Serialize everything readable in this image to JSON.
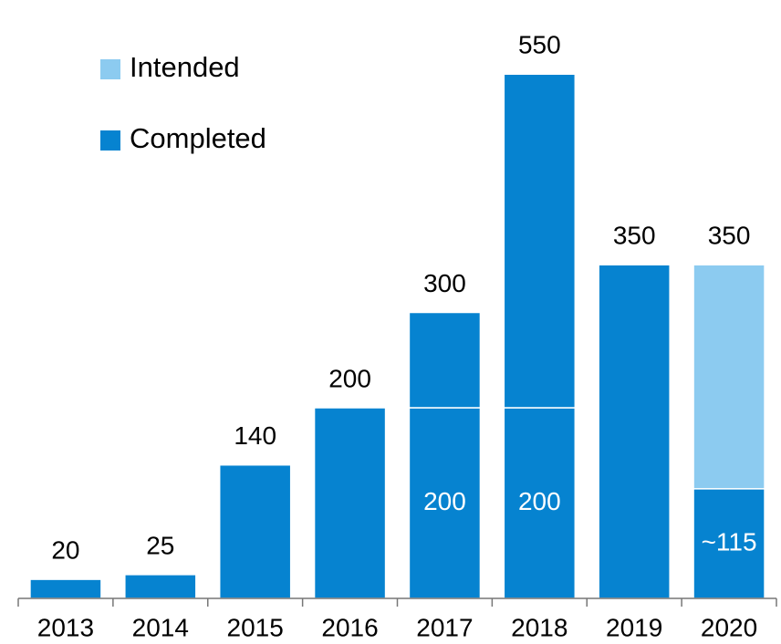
{
  "chart_data": {
    "type": "bar",
    "categories": [
      "2013",
      "2014",
      "2015",
      "2016",
      "2017",
      "2018",
      "2019",
      "2020"
    ],
    "series": [
      {
        "name": "Completed",
        "color": "#0683d0",
        "values": [
          20,
          25,
          140,
          200,
          200,
          200,
          350,
          115
        ],
        "value_labels": [
          null,
          null,
          null,
          null,
          "200",
          "200",
          null,
          "~115"
        ]
      },
      {
        "color": "#0683d0",
        "values": [
          null,
          null,
          null,
          null,
          100,
          350,
          null,
          null
        ]
      },
      {
        "name": "Intended",
        "color": "#8ccbf0",
        "values": [
          null,
          null,
          null,
          null,
          null,
          null,
          null,
          235
        ]
      }
    ],
    "totals": [
      20,
      25,
      140,
      200,
      300,
      550,
      350,
      350
    ],
    "ylim": [
      0,
      600
    ]
  }
}
